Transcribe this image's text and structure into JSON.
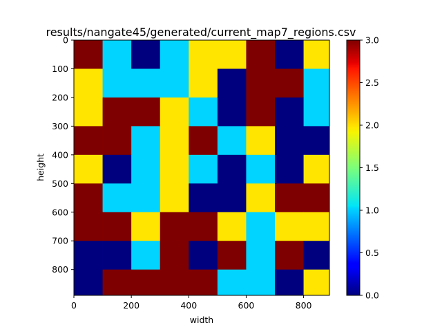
{
  "chart_data": {
    "type": "heatmap",
    "title": "results/nangate45/generated/current_map7_regions.csv",
    "xlabel": "width",
    "ylabel": "height",
    "xlim": [
      0,
      890
    ],
    "ylim": [
      890,
      0
    ],
    "cell_size": 100,
    "x_ticks": [
      0,
      200,
      400,
      600,
      800
    ],
    "y_ticks": [
      0,
      100,
      200,
      300,
      400,
      500,
      600,
      700,
      800
    ],
    "colorbar": {
      "colormap": "jet",
      "vmin": 0.0,
      "vmax": 3.0,
      "ticks": [
        "0.0",
        "0.5",
        "1.0",
        "1.5",
        "2.0",
        "2.5",
        "3.0"
      ]
    },
    "value_colors": {
      "0": "#00007f",
      "1": "#00d4ff",
      "2": "#ffe500",
      "3": "#7f0000"
    },
    "grid": false,
    "values": [
      [
        3,
        1,
        0,
        1,
        2,
        2,
        3,
        0,
        2
      ],
      [
        2,
        1,
        1,
        1,
        2,
        0,
        3,
        3,
        1
      ],
      [
        2,
        3,
        3,
        2,
        1,
        0,
        3,
        0,
        1
      ],
      [
        3,
        3,
        1,
        2,
        3,
        1,
        2,
        0,
        0
      ],
      [
        2,
        0,
        1,
        2,
        1,
        0,
        1,
        0,
        2
      ],
      [
        3,
        1,
        1,
        2,
        0,
        0,
        2,
        3,
        3
      ],
      [
        3,
        3,
        2,
        3,
        3,
        2,
        1,
        2,
        2
      ],
      [
        0,
        0,
        1,
        3,
        0,
        3,
        1,
        3,
        0
      ],
      [
        0,
        3,
        3,
        3,
        3,
        1,
        1,
        0,
        2
      ]
    ]
  }
}
